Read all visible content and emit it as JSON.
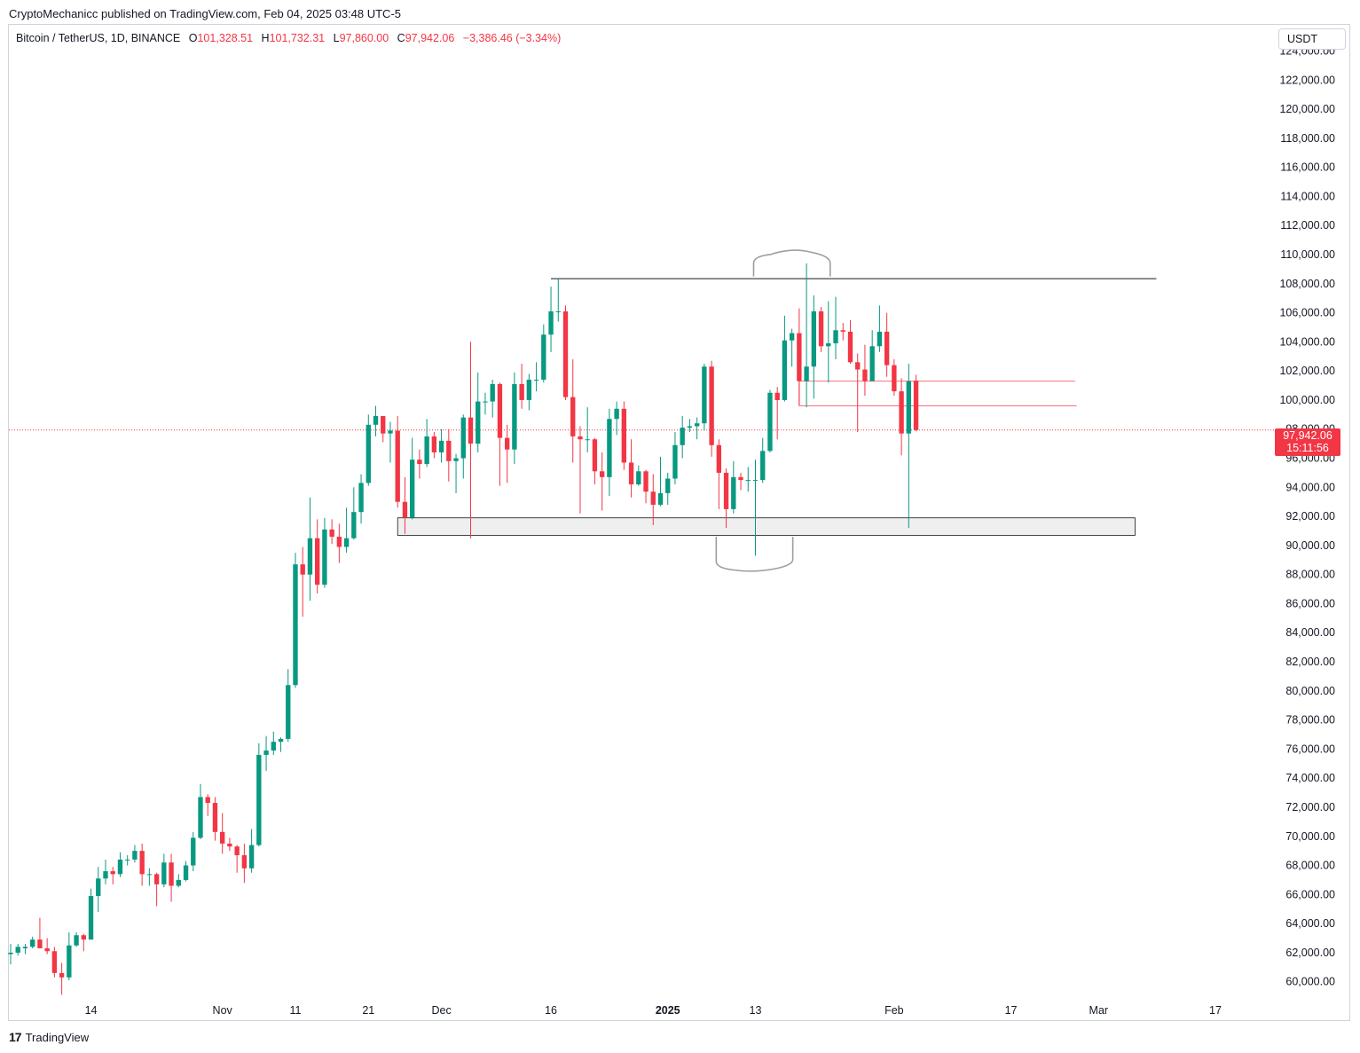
{
  "header": {
    "publisher_line": "CryptoMechanicc published on TradingView.com, Feb 04, 2025 03:48 UTC-5"
  },
  "legend": {
    "symbol": "Bitcoin / TetherUS, 1D, BINANCE",
    "open_label": "O",
    "open": "101,328.51",
    "high_label": "H",
    "high": "101,732.31",
    "low_label": "L",
    "low": "97,860.00",
    "close_label": "C",
    "close": "97,942.06",
    "change": "−3,386.46 (−3.34%)"
  },
  "price_scale": {
    "currency": "USDT"
  },
  "last_price": {
    "value": "97,942.06",
    "countdown": "15:11:56"
  },
  "footer": {
    "brand": "TradingView",
    "brand_mark": "17"
  },
  "colors": {
    "up": "#089981",
    "down": "#f23645",
    "level": "#131722",
    "zone_fill": "#efefef",
    "annot": "#9e9e9e"
  },
  "chart_data": {
    "type": "candlestick",
    "title": "Bitcoin / TetherUS, 1D, BINANCE",
    "ylim": [
      58700,
      125800
    ],
    "y_ticks": [
      60000,
      62000,
      64000,
      66000,
      68000,
      70000,
      72000,
      74000,
      76000,
      78000,
      80000,
      82000,
      84000,
      86000,
      88000,
      90000,
      92000,
      94000,
      96000,
      98000,
      100000,
      102000,
      104000,
      106000,
      108000,
      110000,
      112000,
      114000,
      116000,
      118000,
      120000,
      122000,
      124000
    ],
    "y_tick_labels": [
      "60,000.00",
      "62,000.00",
      "64,000.00",
      "66,000.00",
      "68,000.00",
      "70,000.00",
      "72,000.00",
      "74,000.00",
      "76,000.00",
      "78,000.00",
      "80,000.00",
      "82,000.00",
      "84,000.00",
      "86,000.00",
      "88,000.00",
      "90,000.00",
      "92,000.00",
      "94,000.00",
      "96,000.00",
      "98,000.00",
      "100,000.00",
      "102,000.00",
      "104,000.00",
      "106,000.00",
      "108,000.00",
      "110,000.00",
      "112,000.00",
      "114,000.00",
      "116,000.00",
      "118,000.00",
      "120,000.00",
      "122,000.00",
      "124,000.00"
    ],
    "x_range": [
      "2024-10-03",
      "2025-03-23"
    ],
    "x_ticks": [
      {
        "date": "2024-10-14",
        "label": "14",
        "bold": false
      },
      {
        "date": "2024-11-01",
        "label": "Nov",
        "bold": false
      },
      {
        "date": "2024-11-11",
        "label": "11",
        "bold": false
      },
      {
        "date": "2024-11-21",
        "label": "21",
        "bold": false
      },
      {
        "date": "2024-12-01",
        "label": "Dec",
        "bold": false
      },
      {
        "date": "2024-12-16",
        "label": "16",
        "bold": false
      },
      {
        "date": "2025-01-01",
        "label": "2025",
        "bold": true
      },
      {
        "date": "2025-01-13",
        "label": "13",
        "bold": false
      },
      {
        "date": "2025-02-01",
        "label": "Feb",
        "bold": false
      },
      {
        "date": "2025-02-17",
        "label": "17",
        "bold": false
      },
      {
        "date": "2025-03-01",
        "label": "Mar",
        "bold": false
      },
      {
        "date": "2025-03-17",
        "label": "17",
        "bold": false
      }
    ],
    "last_price": 97942.06,
    "candles": [
      {
        "d": "2024-10-03",
        "o": 61900,
        "h": 62600,
        "l": 61200,
        "c": 62000
      },
      {
        "d": "2024-10-04",
        "o": 62000,
        "h": 62600,
        "l": 61800,
        "c": 62400
      },
      {
        "d": "2024-10-05",
        "o": 62300,
        "h": 62600,
        "l": 61900,
        "c": 62400
      },
      {
        "d": "2024-10-06",
        "o": 62400,
        "h": 63100,
        "l": 62300,
        "c": 62900
      },
      {
        "d": "2024-10-07",
        "o": 62900,
        "h": 64400,
        "l": 62300,
        "c": 62300
      },
      {
        "d": "2024-10-08",
        "o": 62300,
        "h": 63000,
        "l": 61900,
        "c": 62100
      },
      {
        "d": "2024-10-09",
        "o": 62100,
        "h": 62400,
        "l": 60300,
        "c": 60600
      },
      {
        "d": "2024-10-10",
        "o": 60600,
        "h": 61300,
        "l": 59100,
        "c": 60300
      },
      {
        "d": "2024-10-11",
        "o": 60300,
        "h": 63400,
        "l": 60100,
        "c": 62500
      },
      {
        "d": "2024-10-12",
        "o": 62500,
        "h": 63400,
        "l": 62400,
        "c": 63200
      },
      {
        "d": "2024-10-13",
        "o": 63200,
        "h": 63300,
        "l": 62100,
        "c": 62900
      },
      {
        "d": "2024-10-14",
        "o": 62900,
        "h": 66400,
        "l": 62900,
        "c": 65900
      },
      {
        "d": "2024-10-15",
        "o": 65900,
        "h": 67900,
        "l": 64800,
        "c": 67100
      },
      {
        "d": "2024-10-16",
        "o": 67100,
        "h": 68400,
        "l": 66700,
        "c": 67600
      },
      {
        "d": "2024-10-17",
        "o": 67600,
        "h": 67900,
        "l": 66700,
        "c": 67400
      },
      {
        "d": "2024-10-18",
        "o": 67400,
        "h": 68900,
        "l": 67200,
        "c": 68400
      },
      {
        "d": "2024-10-19",
        "o": 68400,
        "h": 68700,
        "l": 68000,
        "c": 68400
      },
      {
        "d": "2024-10-20",
        "o": 68400,
        "h": 69400,
        "l": 68200,
        "c": 69000
      },
      {
        "d": "2024-10-21",
        "o": 69000,
        "h": 69500,
        "l": 66600,
        "c": 67400
      },
      {
        "d": "2024-10-22",
        "o": 67400,
        "h": 67800,
        "l": 66600,
        "c": 67400
      },
      {
        "d": "2024-10-23",
        "o": 67400,
        "h": 67500,
        "l": 65200,
        "c": 66700
      },
      {
        "d": "2024-10-24",
        "o": 66700,
        "h": 68800,
        "l": 66500,
        "c": 68200
      },
      {
        "d": "2024-10-25",
        "o": 68200,
        "h": 68800,
        "l": 65500,
        "c": 66600
      },
      {
        "d": "2024-10-26",
        "o": 66600,
        "h": 67400,
        "l": 66500,
        "c": 67000
      },
      {
        "d": "2024-10-27",
        "o": 67000,
        "h": 68300,
        "l": 66900,
        "c": 68000
      },
      {
        "d": "2024-10-28",
        "o": 68000,
        "h": 70300,
        "l": 67600,
        "c": 69900
      },
      {
        "d": "2024-10-29",
        "o": 69900,
        "h": 73600,
        "l": 69800,
        "c": 72700
      },
      {
        "d": "2024-10-30",
        "o": 72700,
        "h": 72900,
        "l": 71400,
        "c": 72300
      },
      {
        "d": "2024-10-31",
        "o": 72300,
        "h": 72700,
        "l": 69700,
        "c": 70300
      },
      {
        "d": "2024-11-01",
        "o": 70300,
        "h": 71600,
        "l": 68800,
        "c": 69500
      },
      {
        "d": "2024-11-02",
        "o": 69500,
        "h": 69900,
        "l": 69000,
        "c": 69300
      },
      {
        "d": "2024-11-03",
        "o": 69300,
        "h": 69400,
        "l": 67500,
        "c": 68700
      },
      {
        "d": "2024-11-04",
        "o": 68700,
        "h": 69500,
        "l": 66800,
        "c": 67800
      },
      {
        "d": "2024-11-05",
        "o": 67800,
        "h": 70500,
        "l": 67500,
        "c": 69400
      },
      {
        "d": "2024-11-06",
        "o": 69400,
        "h": 76400,
        "l": 69300,
        "c": 75600
      },
      {
        "d": "2024-11-07",
        "o": 75600,
        "h": 76900,
        "l": 74500,
        "c": 75900
      },
      {
        "d": "2024-11-08",
        "o": 75900,
        "h": 77200,
        "l": 75600,
        "c": 76500
      },
      {
        "d": "2024-11-09",
        "o": 76500,
        "h": 76800,
        "l": 75800,
        "c": 76700
      },
      {
        "d": "2024-11-10",
        "o": 76700,
        "h": 81500,
        "l": 76500,
        "c": 80400
      },
      {
        "d": "2024-11-11",
        "o": 80400,
        "h": 89500,
        "l": 80200,
        "c": 88700
      },
      {
        "d": "2024-11-12",
        "o": 88700,
        "h": 89900,
        "l": 85100,
        "c": 88000
      },
      {
        "d": "2024-11-13",
        "o": 88000,
        "h": 93300,
        "l": 86200,
        "c": 90500
      },
      {
        "d": "2024-11-14",
        "o": 90500,
        "h": 91800,
        "l": 86700,
        "c": 87300
      },
      {
        "d": "2024-11-15",
        "o": 87300,
        "h": 91900,
        "l": 87100,
        "c": 91100
      },
      {
        "d": "2024-11-16",
        "o": 91100,
        "h": 91800,
        "l": 90100,
        "c": 90600
      },
      {
        "d": "2024-11-17",
        "o": 90600,
        "h": 91500,
        "l": 88800,
        "c": 89900
      },
      {
        "d": "2024-11-18",
        "o": 89900,
        "h": 92600,
        "l": 89500,
        "c": 90500
      },
      {
        "d": "2024-11-19",
        "o": 90500,
        "h": 94000,
        "l": 90400,
        "c": 92300
      },
      {
        "d": "2024-11-20",
        "o": 92300,
        "h": 94900,
        "l": 91500,
        "c": 94300
      },
      {
        "d": "2024-11-21",
        "o": 94300,
        "h": 99000,
        "l": 94100,
        "c": 98300
      },
      {
        "d": "2024-11-22",
        "o": 98300,
        "h": 99600,
        "l": 97500,
        "c": 98900
      },
      {
        "d": "2024-11-23",
        "o": 98900,
        "h": 98900,
        "l": 97100,
        "c": 97700
      },
      {
        "d": "2024-11-24",
        "o": 97700,
        "h": 98500,
        "l": 95700,
        "c": 97900
      },
      {
        "d": "2024-11-25",
        "o": 97900,
        "h": 98900,
        "l": 92600,
        "c": 93000
      },
      {
        "d": "2024-11-26",
        "o": 93000,
        "h": 94700,
        "l": 90800,
        "c": 91900
      },
      {
        "d": "2024-11-27",
        "o": 91900,
        "h": 97400,
        "l": 91800,
        "c": 95900
      },
      {
        "d": "2024-11-28",
        "o": 95900,
        "h": 96600,
        "l": 94600,
        "c": 95600
      },
      {
        "d": "2024-11-29",
        "o": 95600,
        "h": 98700,
        "l": 95400,
        "c": 97500
      },
      {
        "d": "2024-11-30",
        "o": 97500,
        "h": 97800,
        "l": 96000,
        "c": 96400
      },
      {
        "d": "2024-12-01",
        "o": 96400,
        "h": 98000,
        "l": 95700,
        "c": 97200
      },
      {
        "d": "2024-12-02",
        "o": 97200,
        "h": 98000,
        "l": 94400,
        "c": 95800
      },
      {
        "d": "2024-12-03",
        "o": 95800,
        "h": 96300,
        "l": 93600,
        "c": 96000
      },
      {
        "d": "2024-12-04",
        "o": 96000,
        "h": 99000,
        "l": 94600,
        "c": 98800
      },
      {
        "d": "2024-12-05",
        "o": 98800,
        "h": 104000,
        "l": 90500,
        "c": 97000
      },
      {
        "d": "2024-12-06",
        "o": 97000,
        "h": 101900,
        "l": 96400,
        "c": 99900
      },
      {
        "d": "2024-12-07",
        "o": 99900,
        "h": 100500,
        "l": 99000,
        "c": 99900
      },
      {
        "d": "2024-12-08",
        "o": 99900,
        "h": 101400,
        "l": 98800,
        "c": 101100
      },
      {
        "d": "2024-12-09",
        "o": 101100,
        "h": 101200,
        "l": 94100,
        "c": 97400
      },
      {
        "d": "2024-12-10",
        "o": 97400,
        "h": 98300,
        "l": 94300,
        "c": 96600
      },
      {
        "d": "2024-12-11",
        "o": 96600,
        "h": 101900,
        "l": 95600,
        "c": 101100
      },
      {
        "d": "2024-12-12",
        "o": 101100,
        "h": 102500,
        "l": 99400,
        "c": 100000
      },
      {
        "d": "2024-12-13",
        "o": 100000,
        "h": 101800,
        "l": 99300,
        "c": 101400
      },
      {
        "d": "2024-12-14",
        "o": 101400,
        "h": 102600,
        "l": 100600,
        "c": 101400
      },
      {
        "d": "2024-12-15",
        "o": 101400,
        "h": 105200,
        "l": 101200,
        "c": 104500
      },
      {
        "d": "2024-12-16",
        "o": 104500,
        "h": 107800,
        "l": 103300,
        "c": 106100
      },
      {
        "d": "2024-12-17",
        "o": 106100,
        "h": 108300,
        "l": 105400,
        "c": 106100
      },
      {
        "d": "2024-12-18",
        "o": 106100,
        "h": 106500,
        "l": 100000,
        "c": 100200
      },
      {
        "d": "2024-12-19",
        "o": 100200,
        "h": 102800,
        "l": 95700,
        "c": 97500
      },
      {
        "d": "2024-12-20",
        "o": 97500,
        "h": 98200,
        "l": 92200,
        "c": 97300
      },
      {
        "d": "2024-12-21",
        "o": 97300,
        "h": 99500,
        "l": 96400,
        "c": 97300
      },
      {
        "d": "2024-12-22",
        "o": 97300,
        "h": 97400,
        "l": 94200,
        "c": 95100
      },
      {
        "d": "2024-12-23",
        "o": 95100,
        "h": 96400,
        "l": 92400,
        "c": 94700
      },
      {
        "d": "2024-12-24",
        "o": 94700,
        "h": 99400,
        "l": 93400,
        "c": 98700
      },
      {
        "d": "2024-12-25",
        "o": 98700,
        "h": 99900,
        "l": 97600,
        "c": 99400
      },
      {
        "d": "2024-12-26",
        "o": 99400,
        "h": 99900,
        "l": 95200,
        "c": 95700
      },
      {
        "d": "2024-12-27",
        "o": 95700,
        "h": 97300,
        "l": 93300,
        "c": 94200
      },
      {
        "d": "2024-12-28",
        "o": 94200,
        "h": 95500,
        "l": 94100,
        "c": 95100
      },
      {
        "d": "2024-12-29",
        "o": 95100,
        "h": 95200,
        "l": 92900,
        "c": 93700
      },
      {
        "d": "2024-12-30",
        "o": 93700,
        "h": 94900,
        "l": 91400,
        "c": 92800
      },
      {
        "d": "2024-12-31",
        "o": 92800,
        "h": 96100,
        "l": 92700,
        "c": 93600
      },
      {
        "d": "2025-01-01",
        "o": 93600,
        "h": 95000,
        "l": 92800,
        "c": 94600
      },
      {
        "d": "2025-01-02",
        "o": 94600,
        "h": 97800,
        "l": 94200,
        "c": 96900
      },
      {
        "d": "2025-01-03",
        "o": 96900,
        "h": 98900,
        "l": 96000,
        "c": 98100
      },
      {
        "d": "2025-01-04",
        "o": 98100,
        "h": 98700,
        "l": 97800,
        "c": 98200
      },
      {
        "d": "2025-01-05",
        "o": 98200,
        "h": 98800,
        "l": 97300,
        "c": 98400
      },
      {
        "d": "2025-01-06",
        "o": 98400,
        "h": 102500,
        "l": 97900,
        "c": 102300
      },
      {
        "d": "2025-01-07",
        "o": 102300,
        "h": 102700,
        "l": 96100,
        "c": 96900
      },
      {
        "d": "2025-01-08",
        "o": 96900,
        "h": 97300,
        "l": 92500,
        "c": 95000
      },
      {
        "d": "2025-01-09",
        "o": 95000,
        "h": 95300,
        "l": 91200,
        "c": 92500
      },
      {
        "d": "2025-01-10",
        "o": 92500,
        "h": 95800,
        "l": 92200,
        "c": 94700
      },
      {
        "d": "2025-01-11",
        "o": 94700,
        "h": 95000,
        "l": 93800,
        "c": 94500
      },
      {
        "d": "2025-01-12",
        "o": 94500,
        "h": 95400,
        "l": 93700,
        "c": 94500
      },
      {
        "d": "2025-01-13",
        "o": 94500,
        "h": 95900,
        "l": 89300,
        "c": 94500
      },
      {
        "d": "2025-01-14",
        "o": 94500,
        "h": 97400,
        "l": 94300,
        "c": 96500
      },
      {
        "d": "2025-01-15",
        "o": 96500,
        "h": 100700,
        "l": 96400,
        "c": 100500
      },
      {
        "d": "2025-01-16",
        "o": 100500,
        "h": 100900,
        "l": 97300,
        "c": 100000
      },
      {
        "d": "2025-01-17",
        "o": 100000,
        "h": 105800,
        "l": 99900,
        "c": 104100
      },
      {
        "d": "2025-01-18",
        "o": 104100,
        "h": 104900,
        "l": 102300,
        "c": 104600
      },
      {
        "d": "2025-01-19",
        "o": 104600,
        "h": 106300,
        "l": 99600,
        "c": 101300
      },
      {
        "d": "2025-01-20",
        "o": 101300,
        "h": 109400,
        "l": 99500,
        "c": 102300
      },
      {
        "d": "2025-01-21",
        "o": 102300,
        "h": 107200,
        "l": 100100,
        "c": 106100
      },
      {
        "d": "2025-01-22",
        "o": 106100,
        "h": 106400,
        "l": 103300,
        "c": 103700
      },
      {
        "d": "2025-01-23",
        "o": 103700,
        "h": 106800,
        "l": 101200,
        "c": 103900
      },
      {
        "d": "2025-01-24",
        "o": 103900,
        "h": 107100,
        "l": 102800,
        "c": 104800
      },
      {
        "d": "2025-01-25",
        "o": 104800,
        "h": 105300,
        "l": 104100,
        "c": 104700
      },
      {
        "d": "2025-01-26",
        "o": 104700,
        "h": 105500,
        "l": 102500,
        "c": 102600
      },
      {
        "d": "2025-01-27",
        "o": 102600,
        "h": 103200,
        "l": 97800,
        "c": 102100
      },
      {
        "d": "2025-01-28",
        "o": 102100,
        "h": 103800,
        "l": 100300,
        "c": 101300
      },
      {
        "d": "2025-01-29",
        "o": 101300,
        "h": 104800,
        "l": 101300,
        "c": 103700
      },
      {
        "d": "2025-01-30",
        "o": 103700,
        "h": 106500,
        "l": 103300,
        "c": 104700
      },
      {
        "d": "2025-01-31",
        "o": 104700,
        "h": 106000,
        "l": 101600,
        "c": 102400
      },
      {
        "d": "2025-02-01",
        "o": 102400,
        "h": 102800,
        "l": 100300,
        "c": 100600
      },
      {
        "d": "2025-02-02",
        "o": 100600,
        "h": 101500,
        "l": 96200,
        "c": 97700
      },
      {
        "d": "2025-02-03",
        "o": 97700,
        "h": 102500,
        "l": 91200,
        "c": 101300
      },
      {
        "d": "2025-02-04",
        "o": 101328.51,
        "h": 101732.31,
        "l": 97860,
        "c": 97942.06
      }
    ],
    "annotations": {
      "resistance_line": 108350,
      "support_zone": [
        90700,
        91900
      ],
      "level_1": 101300,
      "level_2": 99600
    }
  }
}
